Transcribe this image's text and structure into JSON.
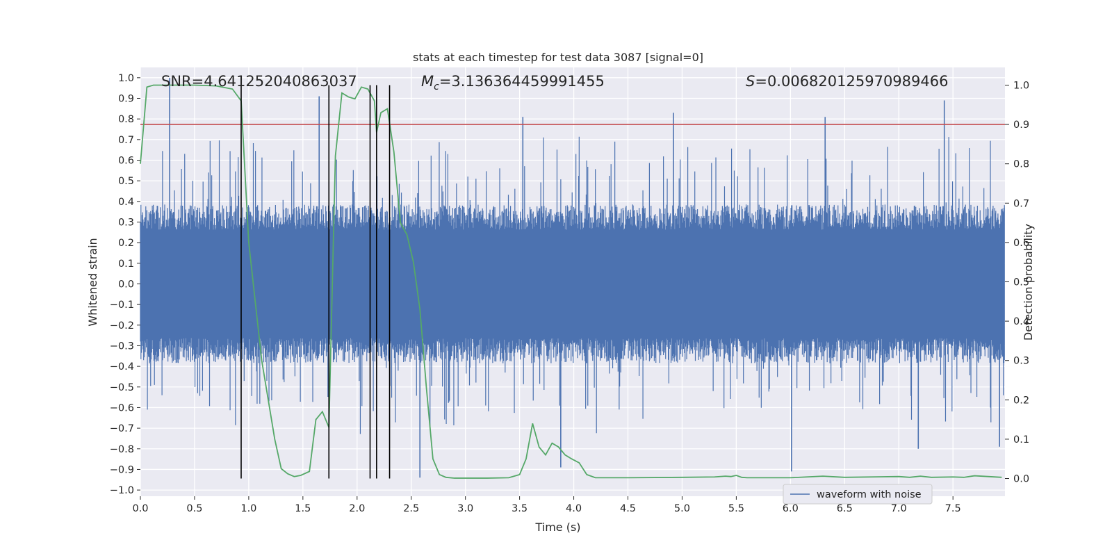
{
  "chart_data": {
    "type": "line",
    "title": "stats at each timestep for test data 3087 [signal=0]",
    "xlabel": "Time (s)",
    "ylabel": "Whitened strain",
    "y2label": "Detection probability",
    "xlim": [
      0.0,
      7.98
    ],
    "ylim": [
      -1.03,
      1.05
    ],
    "y2lim": [
      -0.045,
      1.045
    ],
    "x_ticks": [
      0.0,
      0.5,
      1.0,
      1.5,
      2.0,
      2.5,
      3.0,
      3.5,
      4.0,
      4.5,
      5.0,
      5.5,
      6.0,
      6.5,
      7.0,
      7.5
    ],
    "x_tick_labels": [
      "0.0",
      "0.5",
      "1.0",
      "1.5",
      "2.0",
      "2.5",
      "3.0",
      "3.5",
      "4.0",
      "4.5",
      "5.0",
      "5.5",
      "6.0",
      "6.5",
      "7.0",
      "7.5"
    ],
    "y_ticks": [
      1.0,
      0.9,
      0.8,
      0.7,
      0.6,
      0.5,
      0.4,
      0.3,
      0.2,
      0.1,
      0.0,
      -0.1,
      -0.2,
      -0.3,
      -0.4,
      -0.5,
      -0.6,
      -0.7,
      -0.8,
      -0.9,
      -1.0
    ],
    "y_tick_labels": [
      "1.0",
      "0.9",
      "0.8",
      "0.7",
      "0.6",
      "0.5",
      "0.4",
      "0.3",
      "0.2",
      "0.1",
      "0.0",
      "−0.1",
      "−0.2",
      "−0.3",
      "−0.4",
      "−0.5",
      "−0.6",
      "−0.7",
      "−0.8",
      "−0.9",
      "−1.0"
    ],
    "y2_ticks": [
      1.0,
      0.9,
      0.8,
      0.7,
      0.6,
      0.5,
      0.4,
      0.3,
      0.2,
      0.1,
      0.0
    ],
    "y2_tick_labels": [
      "1.0",
      "0.9",
      "0.8",
      "0.7",
      "0.6",
      "0.5",
      "0.4",
      "0.3",
      "0.2",
      "0.1",
      "0.0"
    ],
    "annotations": {
      "snr": "SNR=4.641252040863037",
      "mc_symbol": "M",
      "mc_subscript": "c",
      "mc_value": "=3.136364459991455",
      "s_symbol": "S",
      "s_value": "=0.006820125970989466"
    },
    "threshold": {
      "axis": "y2",
      "value": 0.9,
      "color": "#c0392b"
    },
    "vertical_lines_x": [
      0.93,
      1.74,
      2.12,
      2.18,
      2.3
    ],
    "legend": {
      "label": "waveform with noise",
      "location": "lower-center-right"
    },
    "colors": {
      "waveform": "#4c72b0",
      "probability": "#55a868",
      "threshold": "#c44e52",
      "vlines": "#000000",
      "background": "#eaeaf2",
      "grid": "#ffffff"
    },
    "series": [
      {
        "name": "waveform with noise",
        "axis": "y",
        "kind": "noise-envelope",
        "sample_count": 1600,
        "typical_amplitude": 0.35,
        "spikes": [
          {
            "x": 0.27,
            "y": 1.0
          },
          {
            "x": 1.65,
            "y": 0.91
          },
          {
            "x": 7.42,
            "y": 0.89
          },
          {
            "x": 4.92,
            "y": 0.83
          },
          {
            "x": 3.53,
            "y": 0.81
          },
          {
            "x": 6.32,
            "y": 0.81
          },
          {
            "x": 2.58,
            "y": -0.94
          },
          {
            "x": 3.88,
            "y": -0.89
          },
          {
            "x": 6.01,
            "y": -0.91
          },
          {
            "x": 7.18,
            "y": -0.8
          },
          {
            "x": 7.93,
            "y": -0.79
          }
        ]
      },
      {
        "name": "detection probability",
        "axis": "y2",
        "kind": "line",
        "x": [
          0.0,
          0.06,
          0.12,
          0.2,
          0.3,
          0.5,
          0.7,
          0.85,
          0.93,
          1.0,
          1.06,
          1.12,
          1.18,
          1.24,
          1.3,
          1.36,
          1.42,
          1.48,
          1.56,
          1.62,
          1.68,
          1.74,
          1.8,
          1.86,
          1.92,
          1.98,
          2.04,
          2.1,
          2.16,
          2.18,
          2.22,
          2.28,
          2.34,
          2.4,
          2.46,
          2.52,
          2.58,
          2.64,
          2.7,
          2.76,
          2.82,
          2.9,
          3.0,
          3.2,
          3.4,
          3.5,
          3.56,
          3.62,
          3.68,
          3.74,
          3.8,
          3.86,
          3.92,
          3.98,
          4.05,
          4.12,
          4.2,
          4.3,
          4.5,
          5.0,
          5.3,
          5.4,
          5.45,
          5.5,
          5.55,
          5.6,
          6.0,
          6.3,
          6.5,
          7.0,
          7.1,
          7.2,
          7.3,
          7.5,
          7.6,
          7.7,
          7.95
        ],
        "y": [
          0.8,
          0.995,
          1.0,
          1.0,
          1.0,
          1.0,
          0.998,
          0.99,
          0.96,
          0.6,
          0.45,
          0.3,
          0.2,
          0.1,
          0.025,
          0.012,
          0.005,
          0.008,
          0.018,
          0.15,
          0.17,
          0.13,
          0.82,
          0.98,
          0.97,
          0.965,
          0.995,
          0.99,
          0.96,
          0.88,
          0.93,
          0.94,
          0.83,
          0.65,
          0.62,
          0.55,
          0.43,
          0.23,
          0.05,
          0.01,
          0.003,
          0.001,
          0.001,
          0.001,
          0.002,
          0.01,
          0.05,
          0.14,
          0.08,
          0.06,
          0.09,
          0.08,
          0.06,
          0.05,
          0.04,
          0.01,
          0.002,
          0.002,
          0.002,
          0.003,
          0.004,
          0.006,
          0.005,
          0.008,
          0.003,
          0.002,
          0.002,
          0.006,
          0.003,
          0.005,
          0.003,
          0.006,
          0.003,
          0.004,
          0.003,
          0.007,
          0.003
        ]
      }
    ]
  }
}
